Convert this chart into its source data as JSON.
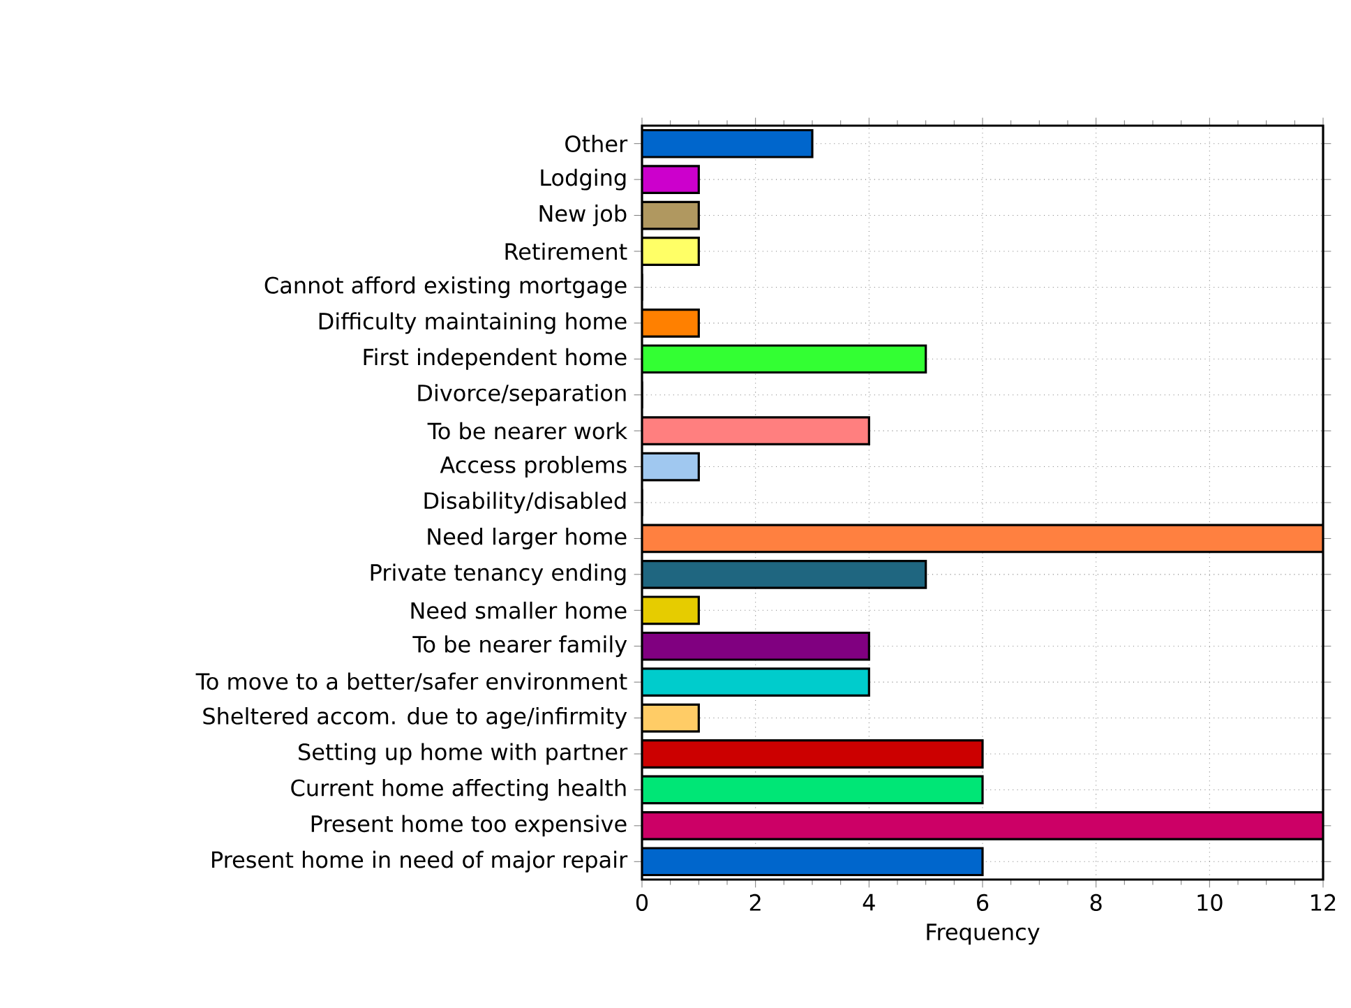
{
  "chart_data": {
    "type": "bar",
    "orientation": "horizontal",
    "xlabel": "Frequency",
    "categories": [
      "Other",
      "Lodging",
      "New job",
      "Retirement",
      "Cannot afford existing mortgage",
      "Difficulty maintaining home",
      "First independent home",
      "Divorce/separation",
      "To be nearer work",
      "Access problems",
      "Disability/disabled",
      "Need larger home",
      "Private tenancy ending",
      "Need smaller home",
      "To be nearer family",
      "To move to a better/safer environment",
      "Sheltered accom. due to age/infirmity",
      "Setting up home with partner",
      "Current home affecting health",
      "Present home too expensive",
      "Present home in need of major repair"
    ],
    "values": [
      3,
      1,
      1,
      1,
      0,
      1,
      5,
      0,
      4,
      1,
      0,
      12,
      5,
      1,
      4,
      4,
      1,
      6,
      6,
      12,
      6
    ],
    "colors": [
      "#0066cc",
      "#cc00cc",
      "#b09860",
      "#ffff66",
      "#888888",
      "#ff8000",
      "#33ff33",
      "#888888",
      "#ff7f7f",
      "#a0c8f0",
      "#888888",
      "#ff8040",
      "#1f6680",
      "#e6cc00",
      "#800080",
      "#00cccc",
      "#ffcc66",
      "#cc0000",
      "#00e676",
      "#cc0066",
      "#0066cc"
    ],
    "xlim": [
      0,
      12
    ],
    "xticks": [
      0,
      2,
      4,
      6,
      8,
      10,
      12
    ],
    "grid": true
  }
}
